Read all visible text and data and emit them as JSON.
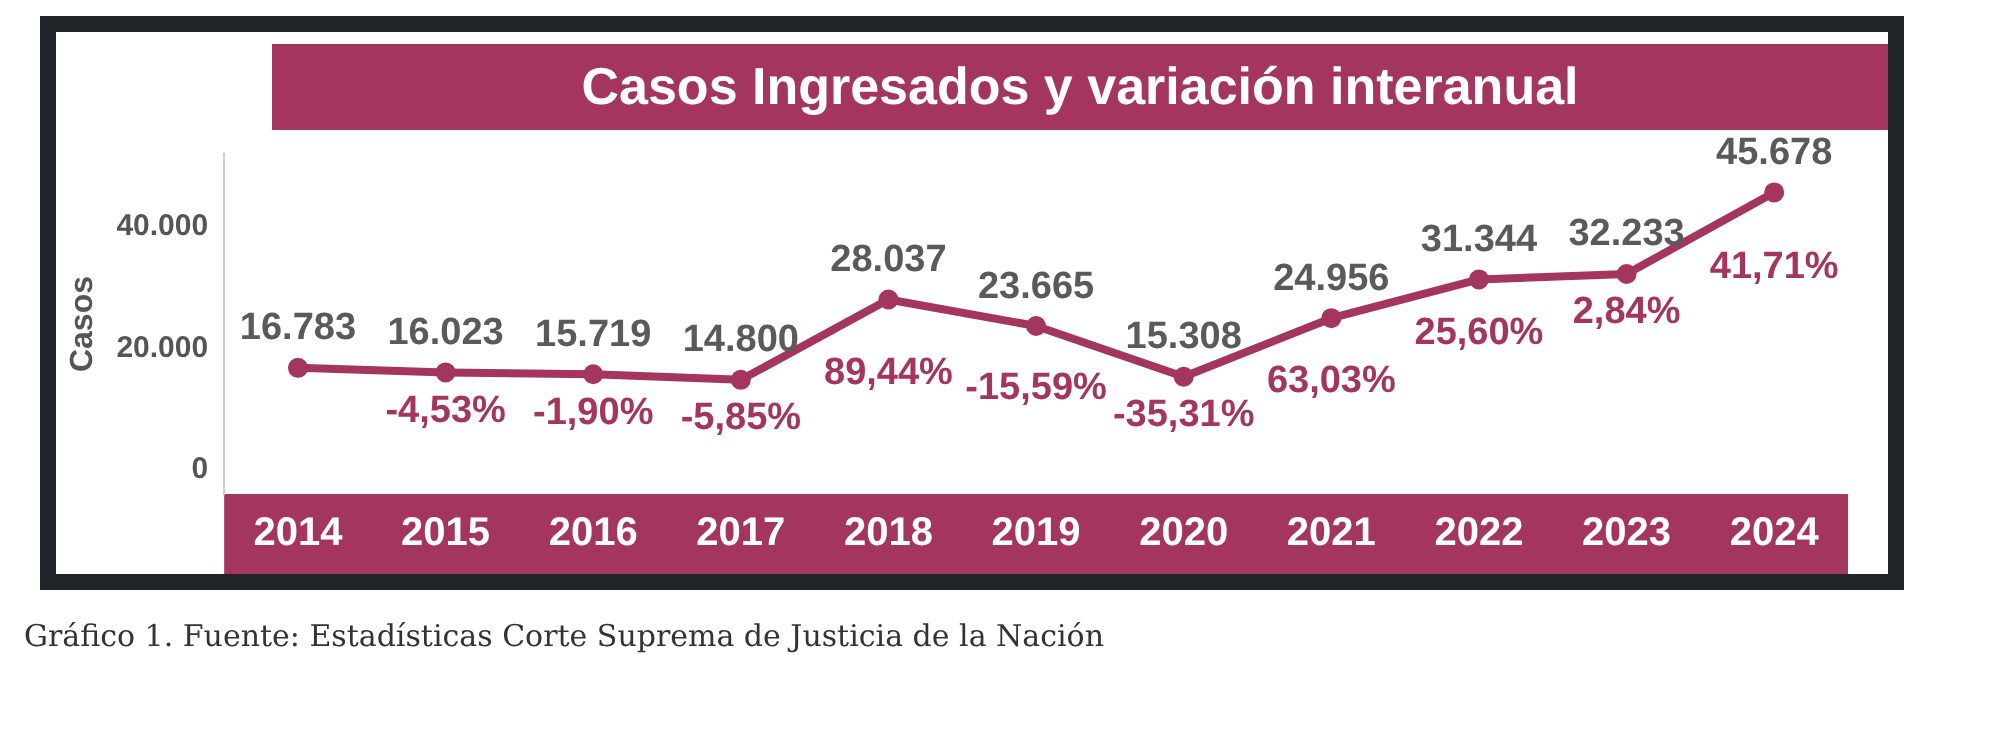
{
  "chart_data": {
    "type": "line",
    "title": "Casos Ingresados y variación interanual",
    "ylabel": "Casos",
    "categories": [
      "2014",
      "2015",
      "2016",
      "2017",
      "2018",
      "2019",
      "2020",
      "2021",
      "2022",
      "2023",
      "2024"
    ],
    "series": [
      {
        "color": "#a3355f",
        "values": [
          16783,
          16023,
          15719,
          14800,
          28037,
          23665,
          15308,
          24956,
          31344,
          32233,
          45678
        ],
        "value_labels": [
          "16.783",
          "16.023",
          "15.719",
          "14.800",
          "28.037",
          "23.665",
          "15.308",
          "24.956",
          "31.344",
          "32.233",
          "45.678"
        ]
      }
    ],
    "ylim": [
      -4000,
      52000
    ],
    "yticks": [
      {
        "value": 0,
        "label": "0"
      },
      {
        "value": 20000,
        "label": "20.000"
      },
      {
        "value": 40000,
        "label": "40.000"
      }
    ],
    "grid": false,
    "legend": false,
    "marker": "circle",
    "line_style": "solid",
    "annotations": [
      {
        "text": "-4,53%",
        "x": "2015",
        "y": 16023
      },
      {
        "text": "-1,90%",
        "x": "2016",
        "y": 15719
      },
      {
        "text": "-5,85%",
        "x": "2017",
        "y": 14800
      },
      {
        "text": "89,44%",
        "x": "2018",
        "y": 28037
      },
      {
        "text": "-15,59%",
        "x": "2019",
        "y": 23665
      },
      {
        "text": "-35,31%",
        "x": "2020",
        "y": 15308
      },
      {
        "text": "63,03%",
        "x": "2021",
        "y": 24956
      },
      {
        "text": "25,60%",
        "x": "2022",
        "y": 31344
      },
      {
        "text": "2,84%",
        "x": "2023",
        "y": 32233
      },
      {
        "text": "41,71%",
        "x": "2024",
        "y": 45678
      },
      "Gráfico 1. Fuente: Estadísticas Corte Suprema de Justicia de la Nación"
    ]
  }
}
